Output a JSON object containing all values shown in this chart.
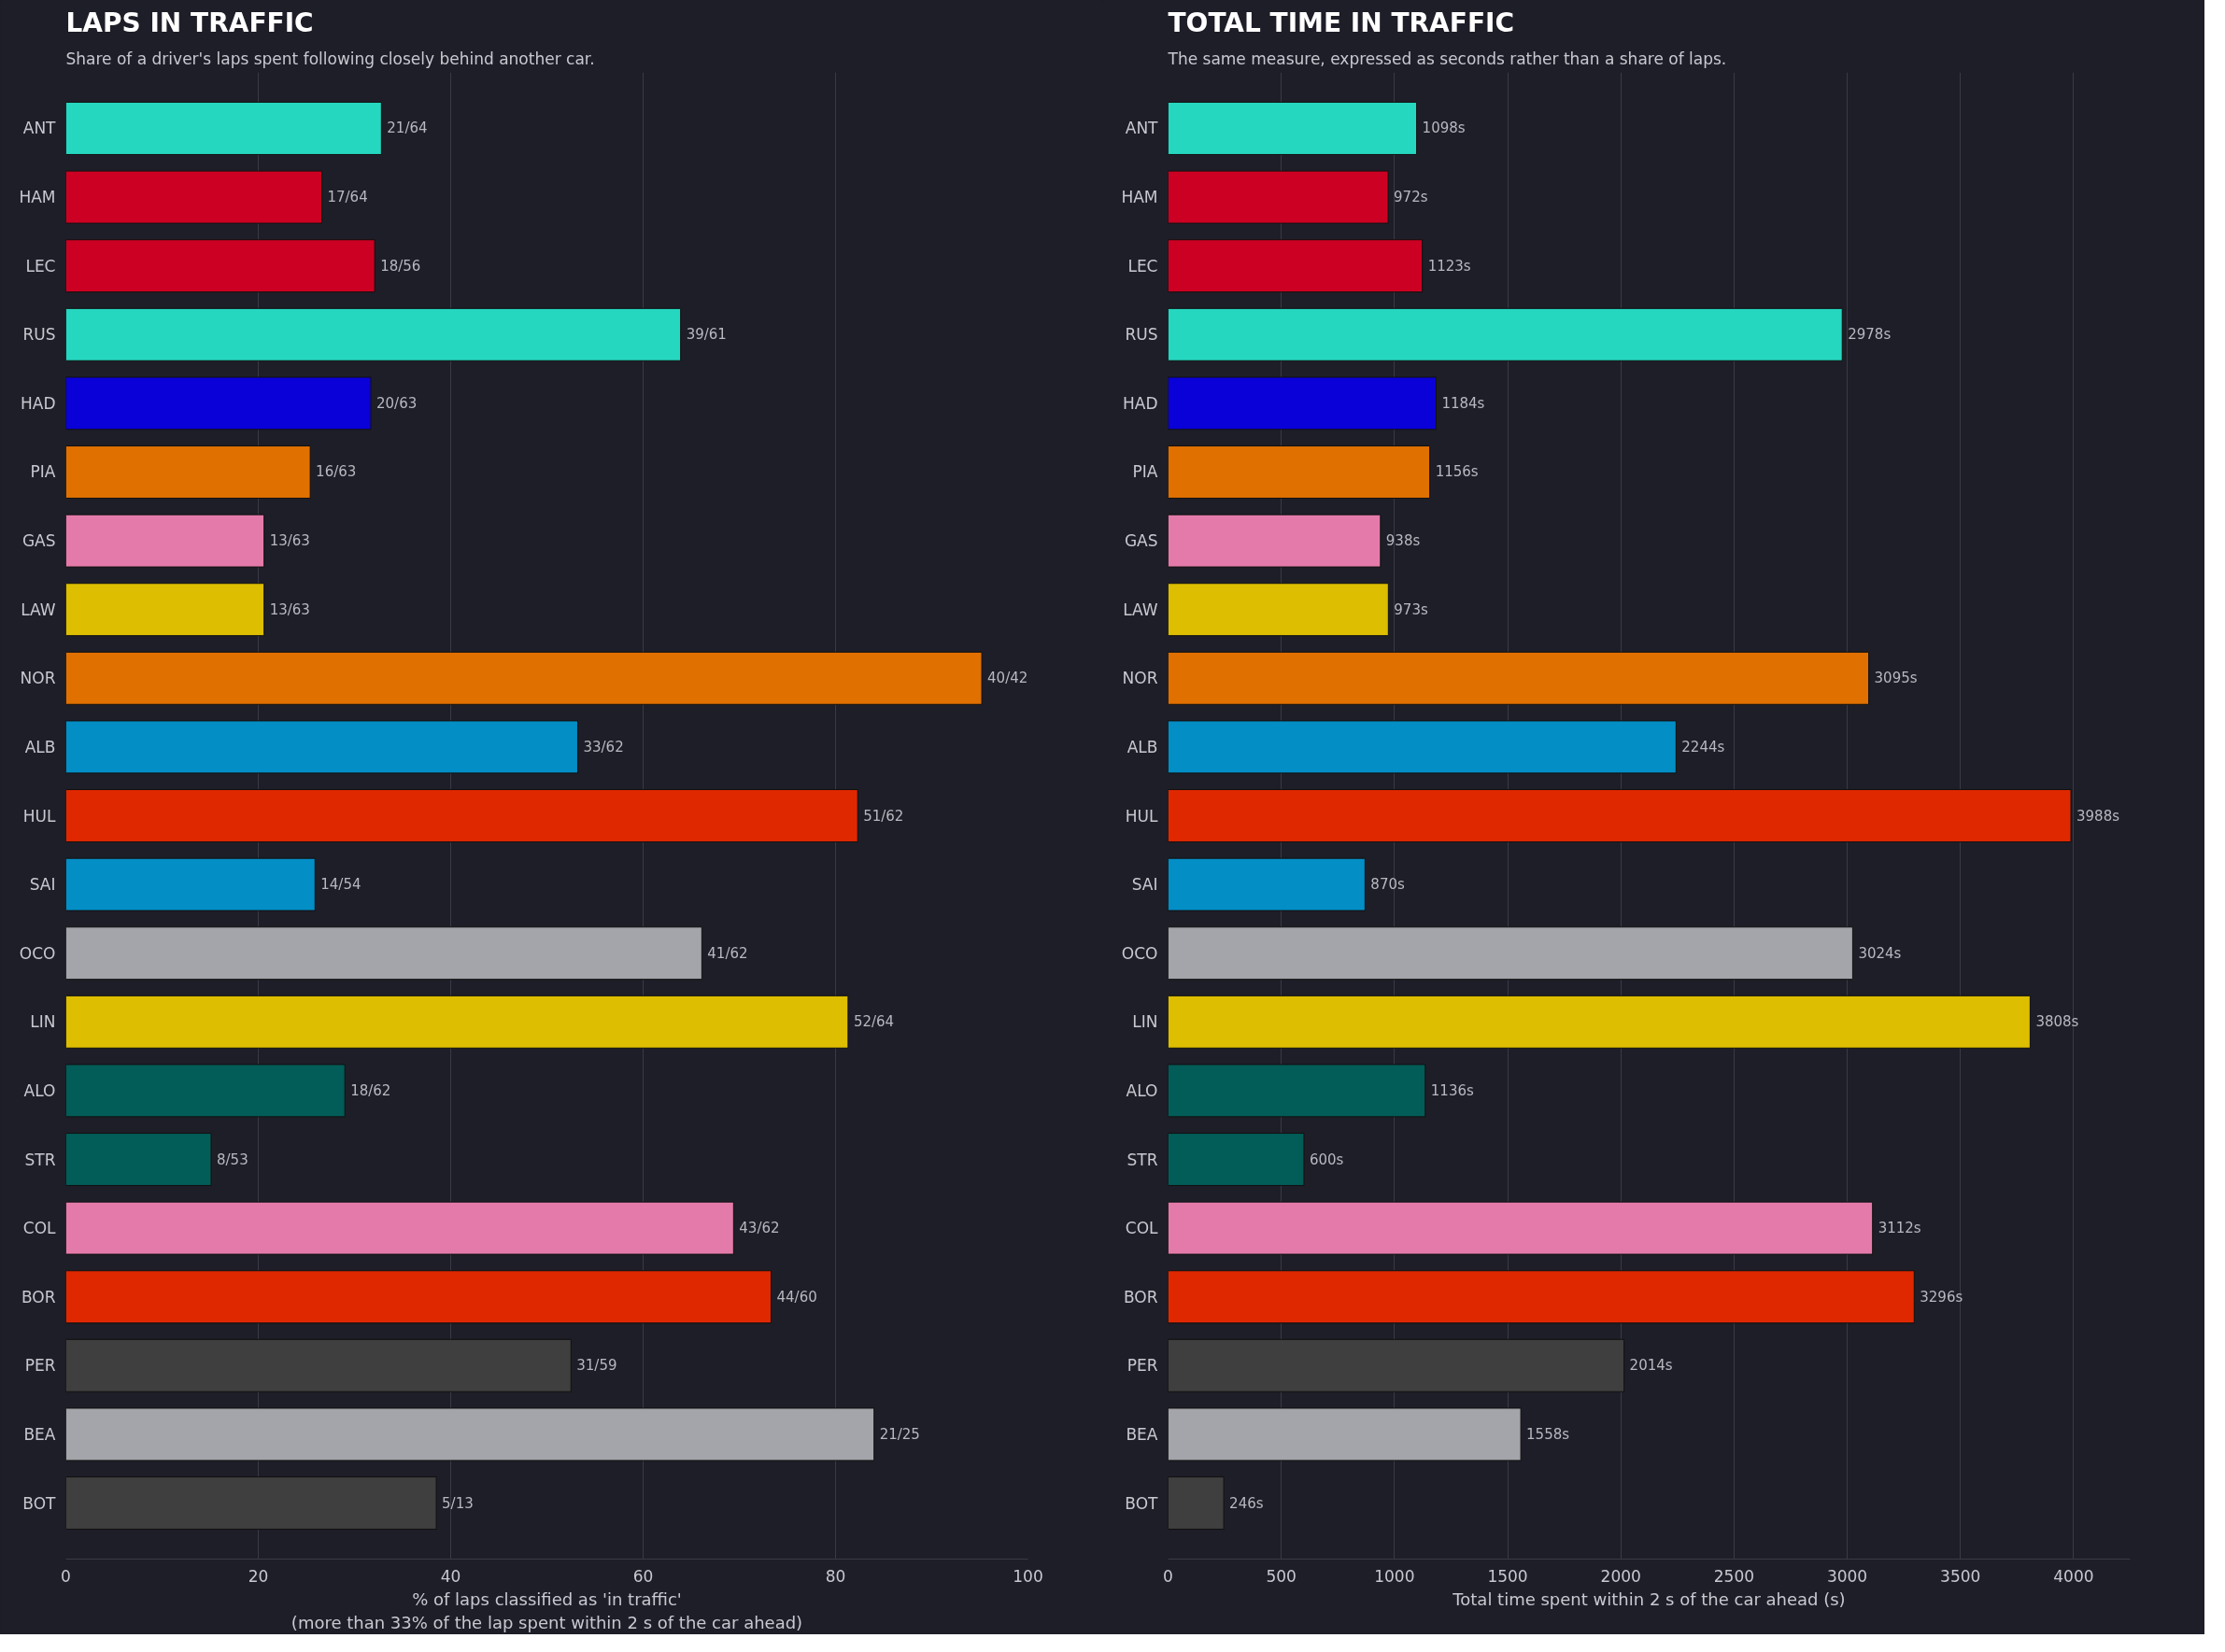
{
  "chart_data": [
    {
      "type": "bar",
      "orientation": "horizontal",
      "title": "LAPS IN TRAFFIC",
      "subtitle": "Share of a driver's laps spent following closely behind another car.",
      "xlabel": "% of laps classified as 'in traffic'\n(more than 33% of the lap spent within 2 s of the car ahead)",
      "categories": [
        "ANT",
        "HAM",
        "LEC",
        "RUS",
        "HAD",
        "PIA",
        "GAS",
        "LAW",
        "NOR",
        "ALB",
        "HUL",
        "SAI",
        "OCO",
        "LIN",
        "ALO",
        "STR",
        "COL",
        "BOR",
        "PER",
        "BEA",
        "BOT"
      ],
      "values": [
        32.8,
        26.6,
        32.1,
        63.9,
        31.7,
        25.4,
        20.6,
        20.6,
        95.2,
        53.2,
        82.3,
        25.9,
        66.1,
        81.3,
        29.0,
        15.1,
        69.4,
        73.3,
        52.5,
        84.0,
        38.5
      ],
      "value_labels": [
        "21/64",
        "17/64",
        "18/56",
        "39/61",
        "20/63",
        "16/63",
        "13/63",
        "13/63",
        "40/42",
        "33/62",
        "51/62",
        "14/54",
        "41/62",
        "52/64",
        "18/62",
        "8/53",
        "43/62",
        "44/60",
        "31/59",
        "21/25",
        "5/13"
      ],
      "colors": [
        "#26d7c0",
        "#cc0022",
        "#cc0022",
        "#26d7c0",
        "#0a00d8",
        "#e07000",
        "#e47aaa",
        "#ddbe00",
        "#e07000",
        "#038ec6",
        "#e02800",
        "#038ec6",
        "#a4a5aa",
        "#ddbe00",
        "#025c58",
        "#025c58",
        "#e47aaa",
        "#e02800",
        "#3f3f3f",
        "#a4a5aa",
        "#3f3f3f"
      ],
      "xlim": [
        0,
        100
      ],
      "xticks": [
        0,
        20,
        40,
        60,
        80,
        100
      ],
      "grid": "x"
    },
    {
      "type": "bar",
      "orientation": "horizontal",
      "title": "TOTAL TIME IN TRAFFIC",
      "subtitle": "The same measure, expressed as seconds rather than a share of laps.",
      "xlabel": "Total time spent within 2 s of the car ahead (s)",
      "categories": [
        "ANT",
        "HAM",
        "LEC",
        "RUS",
        "HAD",
        "PIA",
        "GAS",
        "LAW",
        "NOR",
        "ALB",
        "HUL",
        "SAI",
        "OCO",
        "LIN",
        "ALO",
        "STR",
        "COL",
        "BOR",
        "PER",
        "BEA",
        "BOT"
      ],
      "values": [
        1098,
        972,
        1123,
        2978,
        1184,
        1156,
        938,
        973,
        3095,
        2244,
        3988,
        870,
        3024,
        3808,
        1136,
        600,
        3112,
        3296,
        2014,
        1558,
        246
      ],
      "value_labels": [
        "1098s",
        "972s",
        "1123s",
        "2978s",
        "1184s",
        "1156s",
        "938s",
        "973s",
        "3095s",
        "2244s",
        "3988s",
        "870s",
        "3024s",
        "3808s",
        "1136s",
        "600s",
        "3112s",
        "3296s",
        "2014s",
        "1558s",
        "246s"
      ],
      "colors": [
        "#26d7c0",
        "#cc0022",
        "#cc0022",
        "#26d7c0",
        "#0a00d8",
        "#e07000",
        "#e47aaa",
        "#ddbe00",
        "#e07000",
        "#038ec6",
        "#e02800",
        "#038ec6",
        "#a4a5aa",
        "#ddbe00",
        "#025c58",
        "#025c58",
        "#e47aaa",
        "#e02800",
        "#3f3f3f",
        "#a4a5aa",
        "#3f3f3f"
      ],
      "xlim": [
        0,
        4250
      ],
      "xticks": [
        0,
        500,
        1000,
        1500,
        2000,
        2500,
        3000,
        3500,
        4000
      ],
      "grid": "x"
    }
  ]
}
